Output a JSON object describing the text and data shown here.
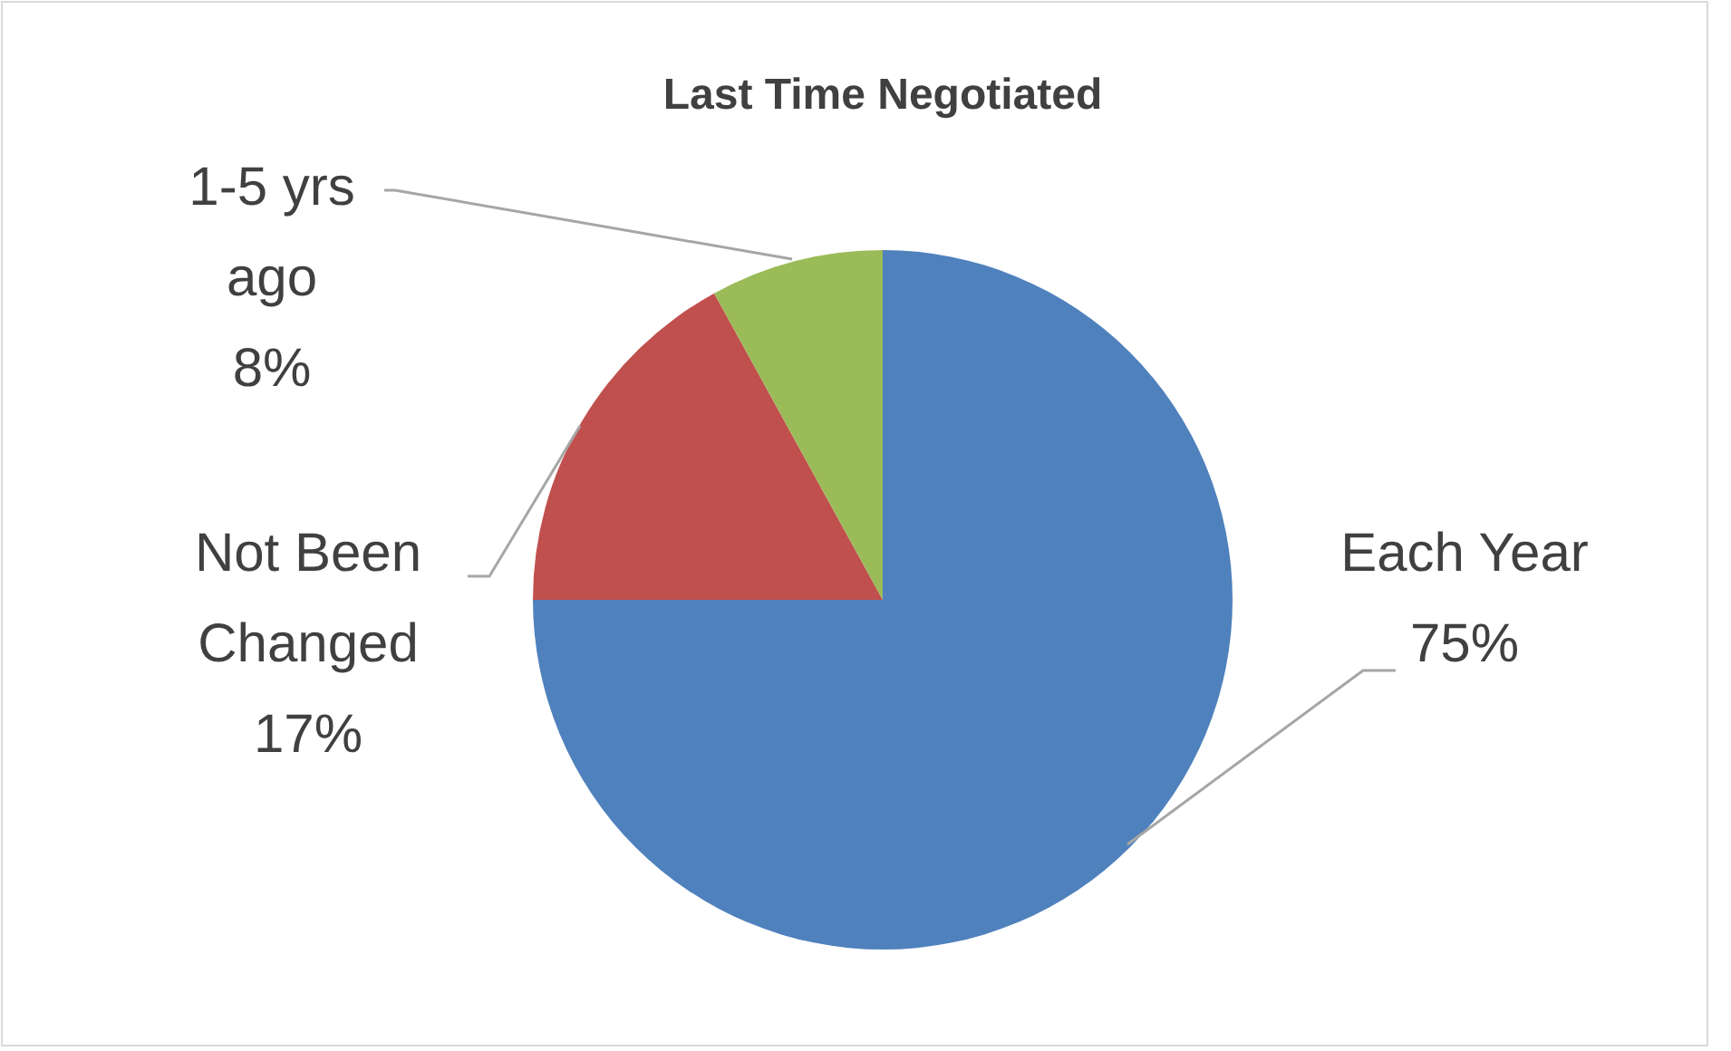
{
  "chart_data": {
    "type": "pie",
    "title": "Last Time Negotiated",
    "categories": [
      "Each Year",
      "Not Been Changed",
      "1-5 yrs ago"
    ],
    "values": [
      75,
      17,
      8
    ],
    "colors": [
      "#4f81bd",
      "#c0504d",
      "#9bbb59"
    ],
    "value_labels": [
      "75%",
      "17%",
      "8%"
    ],
    "legend": false
  }
}
